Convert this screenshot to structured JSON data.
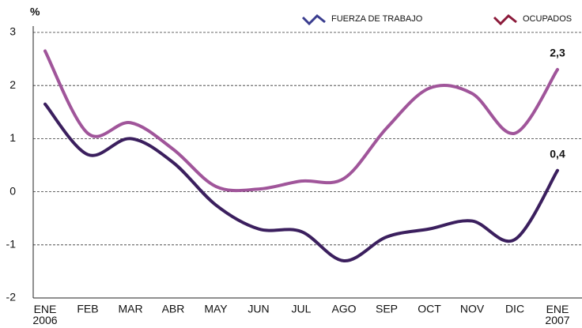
{
  "chart_data": {
    "type": "line",
    "y_label": "%",
    "categories": [
      "ENE 2006",
      "FEB",
      "MAR",
      "ABR",
      "MAY",
      "JUN",
      "JUL",
      "AGO",
      "SEP",
      "OCT",
      "NOV",
      "DIC",
      "ENE 2007"
    ],
    "series": [
      {
        "name": "FUERZA DE TRABAJO",
        "color": "#3b1f5e",
        "legend_color": "#3a3d8f",
        "values": [
          1.65,
          0.7,
          1.0,
          0.55,
          -0.25,
          -0.7,
          -0.75,
          -1.3,
          -0.85,
          -0.7,
          -0.55,
          -0.9,
          0.4
        ],
        "value_labels": [
          null,
          null,
          null,
          null,
          null,
          null,
          null,
          null,
          null,
          null,
          null,
          null,
          "0,4"
        ]
      },
      {
        "name": "OCUPADOS",
        "color": "#a0559a",
        "legend_color": "#8b1a3a",
        "values": [
          2.65,
          1.1,
          1.3,
          0.8,
          0.1,
          0.05,
          0.2,
          0.25,
          1.2,
          1.95,
          1.85,
          1.1,
          2.3
        ],
        "value_labels": [
          null,
          null,
          null,
          null,
          null,
          null,
          null,
          null,
          null,
          null,
          null,
          null,
          "2,3"
        ]
      }
    ],
    "ylim": [
      -2,
      3
    ],
    "yticks": [
      -2,
      -1,
      0,
      1,
      2,
      3
    ],
    "grid": true
  }
}
